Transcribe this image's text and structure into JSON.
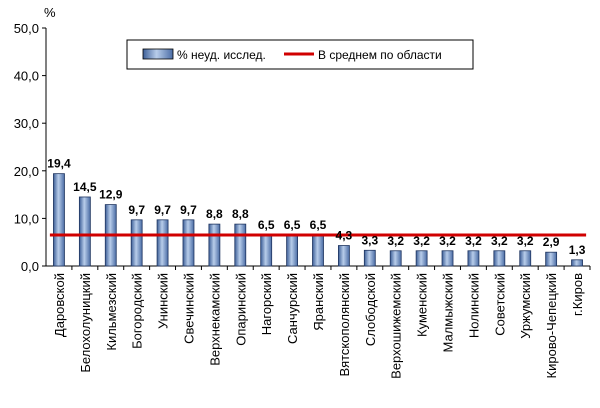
{
  "chart_data": {
    "type": "bar",
    "title": "",
    "xlabel": "",
    "ylabel": "%",
    "ylim": [
      0,
      50
    ],
    "yticks": [
      "0,0",
      "10,0",
      "20,0",
      "30,0",
      "40,0",
      "50,0"
    ],
    "grid": false,
    "legend_position": "top-center",
    "categories": [
      "Даровской",
      "Белохолуницкий",
      "Кильмезский",
      "Богородский",
      "Унинский",
      "Свечинский",
      "Верхнекамский",
      "Опаринский",
      "Нагорский",
      "Санчурский",
      "Яранский",
      "Вятскополянский",
      "Слободской",
      "Верхошижемский",
      "Куменский",
      "Малмыжский",
      "Нолинский",
      "Советский",
      "Уржумский",
      "Кирово-Чепецкий",
      "г.Киров"
    ],
    "series": [
      {
        "name": "% неуд. исслед.",
        "kind": "bar",
        "color": "#7f9fcf",
        "values": [
          19.4,
          14.5,
          12.9,
          9.7,
          9.7,
          9.7,
          8.8,
          8.8,
          6.5,
          6.5,
          6.5,
          4.3,
          3.3,
          3.2,
          3.2,
          3.2,
          3.2,
          3.2,
          3.2,
          2.9,
          1.3
        ],
        "labels": [
          "19,4",
          "14,5",
          "12,9",
          "9,7",
          "9,7",
          "9,7",
          "8,8",
          "8,8",
          "6,5",
          "6,5",
          "6,5",
          "4,3",
          "3,3",
          "3,2",
          "3,2",
          "3,2",
          "3,2",
          "3,2",
          "3,2",
          "2,9",
          "1,3"
        ]
      },
      {
        "name": "В среднем по области",
        "kind": "line",
        "color": "#d00000",
        "value": 6.5
      }
    ]
  }
}
